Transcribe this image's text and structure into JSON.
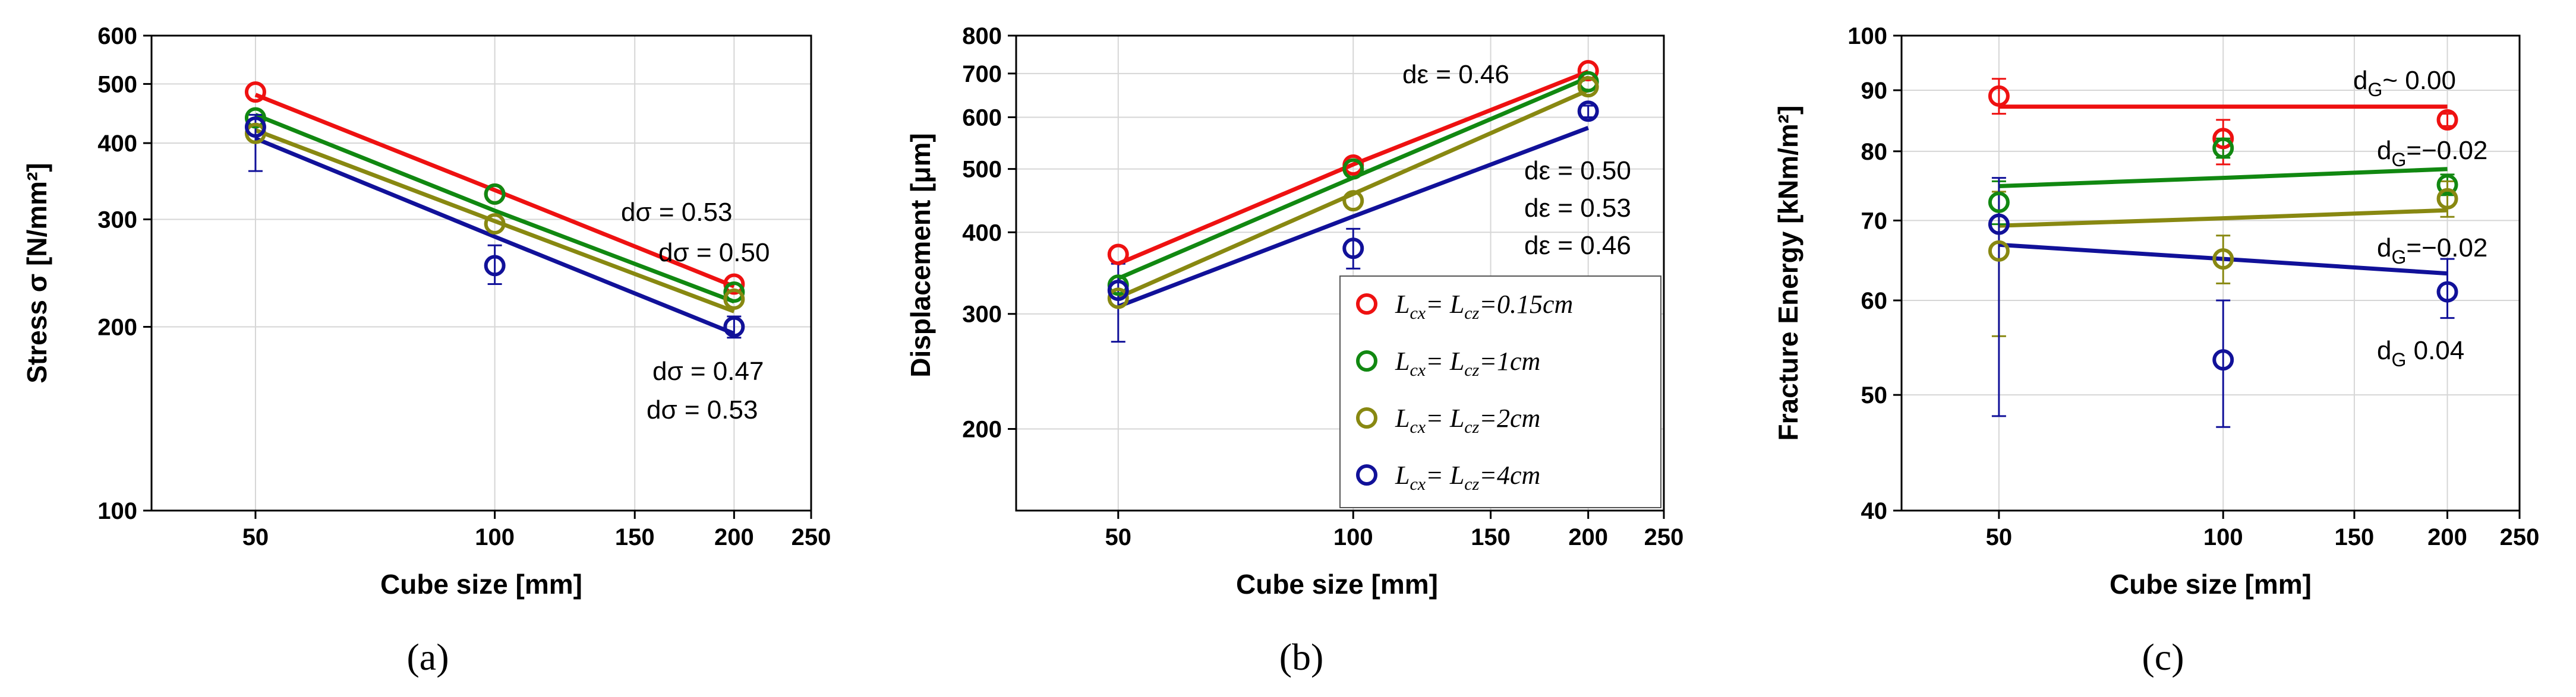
{
  "figure": {
    "labels": [
      "(a)",
      "(b)",
      "(c)"
    ]
  },
  "chart_data": [
    {
      "type": "scatter",
      "panel_label": "(a)",
      "xlabel": "Cube size [mm]",
      "ylabel": "Stress σ [N/mm²]",
      "xscale": "log",
      "yscale": "log",
      "xlim": [
        37,
        250
      ],
      "ylim": [
        100,
        600
      ],
      "xticks": [
        50,
        100,
        150,
        200,
        250
      ],
      "yticks": [
        100,
        200,
        300,
        400,
        500,
        600
      ],
      "grid": true,
      "x": [
        50,
        100,
        200
      ],
      "series": [
        {
          "name": "Lcx = Lcz = 0.15cm",
          "color": "#ee1111",
          "values": [
            485,
            330,
            235
          ],
          "errors": [
            null,
            null,
            null
          ],
          "fit": [
            480,
            335,
            233
          ]
        },
        {
          "name": "Lcx = Lcz = 1cm",
          "color": "#118811",
          "values": [
            440,
            330,
            228
          ],
          "errors": [
            null,
            null,
            null
          ],
          "fit": [
            445,
            310,
            220
          ]
        },
        {
          "name": "Lcx = Lcz = 2cm",
          "color": "#888811",
          "values": [
            415,
            295,
            222
          ],
          "errors": [
            null,
            null,
            null
          ],
          "fit": [
            420,
            298,
            212
          ]
        },
        {
          "name": "Lcx = Lcz = 4cm",
          "color": "#111199",
          "values": [
            425,
            252,
            200
          ],
          "errors": [
            [
              360,
              445
            ],
            [
              235,
              272
            ],
            [
              192,
              208
            ]
          ],
          "fit": [
            407,
            281,
            195
          ]
        }
      ],
      "annotations": [
        "dσ = 0.53",
        "dσ = 0.50",
        "dσ = 0.47",
        "dσ = 0.53"
      ]
    },
    {
      "type": "scatter",
      "panel_label": "(b)",
      "xlabel": "Cube size [mm]",
      "ylabel": "Displacement [μm]",
      "xscale": "log",
      "yscale": "log",
      "xlim": [
        37,
        250
      ],
      "ylim": [
        150,
        800
      ],
      "xticks": [
        50,
        100,
        150,
        200,
        250
      ],
      "yticks": [
        200,
        300,
        400,
        500,
        600,
        700,
        800
      ],
      "grid": true,
      "x": [
        50,
        100,
        200
      ],
      "series": [
        {
          "name": "Lcx = Lcz = 0.15cm",
          "color": "#ee1111",
          "values": [
            370,
            507,
            707
          ],
          "errors": [
            null,
            null,
            null
          ],
          "fit": [
            358,
            508,
            705
          ]
        },
        {
          "name": "Lcx = Lcz = 1cm",
          "color": "#118811",
          "values": [
            332,
            500,
            680
          ],
          "errors": [
            null,
            null,
            null
          ],
          "fit": [
            340,
            485,
            690
          ]
        },
        {
          "name": "Lcx = Lcz = 2cm",
          "color": "#888811",
          "values": [
            317,
            447,
            668
          ],
          "errors": [
            null,
            null,
            null
          ],
          "fit": [
            318,
            458,
            660
          ]
        },
        {
          "name": "Lcx = Lcz = 4cm",
          "color": "#111199",
          "values": [
            326,
            378,
            613
          ],
          "errors": [
            [
              272,
              358
            ],
            [
              352,
              405
            ],
            [
              600,
              625
            ]
          ],
          "fit": [
            308,
            423,
            578
          ]
        }
      ],
      "annotations": [
        "dε = 0.46",
        "dε = 0.50",
        "dε = 0.53",
        "dε = 0.46"
      ],
      "legend": {
        "position": "lower-right",
        "entries": [
          {
            "parts": [
              "L",
              "cx",
              "= L",
              "cz",
              "=0.15cm"
            ],
            "color": "#ee1111"
          },
          {
            "parts": [
              "L",
              "cx",
              "= L",
              "cz",
              "=1cm"
            ],
            "color": "#118811"
          },
          {
            "parts": [
              "L",
              "cx",
              "= L",
              "cz",
              "=2cm"
            ],
            "color": "#888811"
          },
          {
            "parts": [
              "L",
              "cx",
              "= L",
              "cz",
              "=4cm"
            ],
            "color": "#111199"
          }
        ]
      }
    },
    {
      "type": "scatter",
      "panel_label": "(c)",
      "xlabel": "Cube size [mm]",
      "ylabel": "Fracture Energy [kNm/m²]",
      "xscale": "log",
      "yscale": "log",
      "xlim": [
        37,
        250
      ],
      "ylim": [
        40,
        100
      ],
      "xticks": [
        50,
        100,
        150,
        200,
        250
      ],
      "yticks": [
        40,
        50,
        60,
        70,
        80,
        90,
        100
      ],
      "grid": true,
      "x": [
        50,
        100,
        200
      ],
      "series": [
        {
          "name": "Lcx = Lcz = 0.15cm",
          "color": "#ee1111",
          "values": [
            89.0,
            82.0,
            85.0
          ],
          "errors": [
            [
              86.0,
              92.0
            ],
            [
              78.0,
              85.0
            ],
            [
              84.0,
              86.0
            ]
          ],
          "fit": [
            87.2,
            87.2,
            87.2
          ]
        },
        {
          "name": "Lcx = Lcz = 1cm",
          "color": "#118811",
          "values": [
            72.5,
            80.5,
            75.0
          ],
          "errors": [
            [
              69.5,
              75.5
            ],
            [
              79.0,
              82.0
            ],
            [
              73.5,
              76.5
            ]
          ],
          "fit": [
            74.8,
            76.0,
            77.3
          ]
        },
        {
          "name": "Lcx = Lcz = 2cm",
          "color": "#888811",
          "values": [
            66.0,
            65.0,
            73.0
          ],
          "errors": [
            [
              56.0,
              74.0
            ],
            [
              62.0,
              68.0
            ],
            [
              70.5,
              75.5
            ]
          ],
          "fit": [
            69.3,
            70.3,
            71.4
          ]
        },
        {
          "name": "Lcx = Lcz = 4cm",
          "color": "#111199",
          "values": [
            69.5,
            53.5,
            61.0
          ],
          "errors": [
            [
              48.0,
              76.0
            ],
            [
              47.0,
              60.0
            ],
            [
              58.0,
              65.0
            ]
          ],
          "fit": [
            66.8,
            65.0,
            63.2
          ]
        }
      ],
      "annotations": [
        {
          "base": "d",
          "sub": "G",
          "rest": "~ 0.00"
        },
        {
          "base": "d",
          "sub": "G",
          "rest": "=−0.02"
        },
        {
          "base": "d",
          "sub": "G",
          "rest": "=−0.02"
        },
        {
          "base": "d",
          "sub": "G",
          "rest": " 0.04"
        }
      ]
    }
  ]
}
